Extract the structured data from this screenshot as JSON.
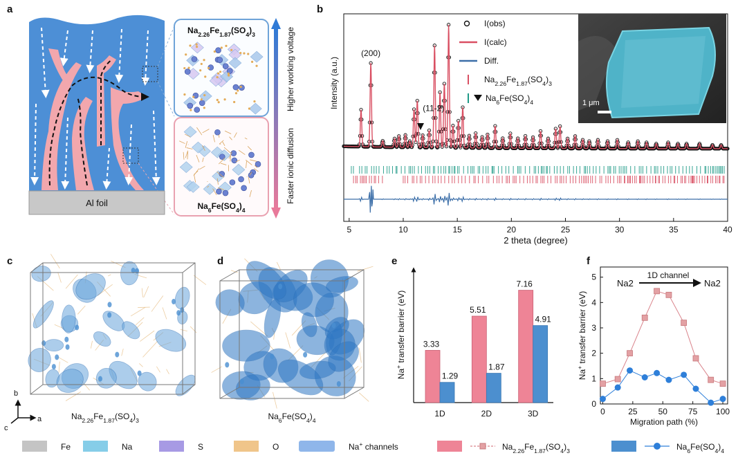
{
  "panel_labels": {
    "a": "a",
    "b": "b",
    "c": "c",
    "d": "d",
    "e": "e",
    "f": "f"
  },
  "panel_a": {
    "foil_label": "Al foil",
    "top_compound": "Na2.26Fe1.87(SO4)3",
    "bottom_compound": "Na6Fe(SO4)4",
    "arrow_up_label": "Higher working voltage",
    "arrow_down_label": "Faster ionic diffusion",
    "colors": {
      "electrode": "#4d8fd6",
      "path": "#f2a7ad",
      "foil": "#c8c8c8"
    }
  },
  "panel_b_inset": {
    "scale_bar": "1 μm"
  },
  "panel_c": {
    "caption": "Na2.26Fe1.87(SO4)3"
  },
  "panel_d": {
    "caption": "Na6Fe(SO4)4"
  },
  "axes_triad": {
    "b": "b",
    "a": "a",
    "c": "c"
  },
  "chart_data": [
    {
      "id": "b",
      "type": "line",
      "title": "",
      "xlabel": "2 theta (degree)",
      "ylabel": "Intensity (a.u.)",
      "xlim": [
        4.5,
        40
      ],
      "xticks": [
        5,
        10,
        15,
        20,
        25,
        30,
        35,
        40
      ],
      "legend": [
        {
          "name": "I(obs)",
          "color": "#111111",
          "style": "circle"
        },
        {
          "name": "I(calc)",
          "color": "#d94f62",
          "style": "line"
        },
        {
          "name": "Diff.",
          "color": "#3b6ea8",
          "style": "line"
        },
        {
          "name": "Na2.26Fe1.87(SO4)3",
          "color": "#d94f62",
          "style": "tick"
        },
        {
          "name": "Na6Fe(SO4)4",
          "color": "#1f9a87",
          "style": "tick",
          "marker": "triangle"
        }
      ],
      "annotations": [
        {
          "text": "(200)",
          "x": 7.0
        },
        {
          "text": "(11-2)",
          "x": 12.8
        }
      ],
      "peaks": [
        {
          "x": 6.1,
          "h": 0.3
        },
        {
          "x": 7.0,
          "h": 0.68
        },
        {
          "x": 8.1,
          "h": 0.05
        },
        {
          "x": 9.2,
          "h": 0.07
        },
        {
          "x": 9.6,
          "h": 0.09
        },
        {
          "x": 10.2,
          "h": 0.1
        },
        {
          "x": 10.6,
          "h": 0.05
        },
        {
          "x": 11.0,
          "h": 0.31
        },
        {
          "x": 11.3,
          "h": 0.38
        },
        {
          "x": 11.8,
          "h": 0.1
        },
        {
          "x": 12.4,
          "h": 0.14
        },
        {
          "x": 12.9,
          "h": 0.83
        },
        {
          "x": 13.4,
          "h": 0.45
        },
        {
          "x": 13.8,
          "h": 0.52
        },
        {
          "x": 14.2,
          "h": 1.0
        },
        {
          "x": 14.6,
          "h": 0.18
        },
        {
          "x": 15.1,
          "h": 0.22
        },
        {
          "x": 15.5,
          "h": 0.33
        },
        {
          "x": 16.1,
          "h": 0.1
        },
        {
          "x": 16.7,
          "h": 0.12
        },
        {
          "x": 17.3,
          "h": 0.09
        },
        {
          "x": 17.8,
          "h": 0.11
        },
        {
          "x": 18.5,
          "h": 0.18
        },
        {
          "x": 19.2,
          "h": 0.08
        },
        {
          "x": 19.9,
          "h": 0.12
        },
        {
          "x": 20.6,
          "h": 0.08
        },
        {
          "x": 21.3,
          "h": 0.1
        },
        {
          "x": 22.0,
          "h": 0.09
        },
        {
          "x": 22.7,
          "h": 0.14
        },
        {
          "x": 23.4,
          "h": 0.08
        },
        {
          "x": 24.1,
          "h": 0.16
        },
        {
          "x": 24.5,
          "h": 0.18
        },
        {
          "x": 25.2,
          "h": 0.08
        },
        {
          "x": 25.9,
          "h": 0.1
        },
        {
          "x": 26.6,
          "h": 0.07
        },
        {
          "x": 27.2,
          "h": 0.06
        },
        {
          "x": 28.0,
          "h": 0.07
        },
        {
          "x": 28.9,
          "h": 0.06
        },
        {
          "x": 29.8,
          "h": 0.07
        },
        {
          "x": 30.8,
          "h": 0.05
        },
        {
          "x": 31.7,
          "h": 0.06
        },
        {
          "x": 32.5,
          "h": 0.05
        },
        {
          "x": 33.4,
          "h": 0.04
        },
        {
          "x": 34.5,
          "h": 0.05
        },
        {
          "x": 35.4,
          "h": 0.04
        },
        {
          "x": 36.2,
          "h": 0.04
        },
        {
          "x": 37.4,
          "h": 0.04
        },
        {
          "x": 38.6,
          "h": 0.03
        },
        {
          "x": 39.4,
          "h": 0.03
        }
      ],
      "triangle_marker_x": 11.6
    },
    {
      "id": "e",
      "type": "bar",
      "title": "",
      "xlabel": "",
      "ylabel": "Na+ transfer barrier (eV)",
      "ylim": [
        0,
        8.2
      ],
      "categories": [
        "1D",
        "2D",
        "3D"
      ],
      "series": [
        {
          "name": "Na2.26Fe1.87(SO4)3",
          "color": "#ee8496",
          "values": [
            3.33,
            5.51,
            7.16
          ]
        },
        {
          "name": "Na6Fe(SO4)4",
          "color": "#4c8fcf",
          "values": [
            1.29,
            1.87,
            4.91
          ]
        }
      ]
    },
    {
      "id": "f",
      "type": "line",
      "title": "",
      "xlabel": "Migration path (%)",
      "ylabel": "Na+ transfer barrier (eV)",
      "xlim": [
        -2,
        104
      ],
      "ylim": [
        0,
        5.4
      ],
      "xticks": [
        0,
        25,
        50,
        75,
        100
      ],
      "yticks": [
        0,
        1,
        2,
        3,
        4,
        5
      ],
      "annotation": {
        "left": "Na2",
        "right": "Na2",
        "arrow": "1D channel"
      },
      "series": [
        {
          "name": "Na2.26Fe1.87(SO4)3",
          "color": "#d9828a",
          "marker": "square",
          "x": [
            0,
            12.5,
            22.5,
            35,
            45,
            55,
            67.5,
            77.5,
            90,
            100
          ],
          "y": [
            0.8,
            0.98,
            2.0,
            3.4,
            4.45,
            4.3,
            3.2,
            1.8,
            0.95,
            0.8
          ]
        },
        {
          "name": "Na6Fe(SO4)4",
          "color": "#2e7fd9",
          "marker": "circle",
          "x": [
            0,
            12.5,
            22.5,
            35,
            45,
            55,
            67.5,
            77.5,
            90,
            100
          ],
          "y": [
            0.2,
            0.65,
            1.32,
            1.05,
            1.22,
            0.95,
            1.15,
            0.6,
            0.05,
            0.2
          ]
        }
      ]
    }
  ],
  "bottom_legend": [
    {
      "label": "Fe",
      "color": "#c4c4c4"
    },
    {
      "label": "Na",
      "color": "#86cde8"
    },
    {
      "label": "S",
      "color": "#a79ae4"
    },
    {
      "label": "O",
      "color": "#f0c58a"
    },
    {
      "label": "Na+ channels",
      "color": "#8fb6ea"
    },
    {
      "label": "Na2.26Fe1.87(SO4)3",
      "color": "#ee8496"
    },
    {
      "label": "Na6Fe(SO4)4",
      "color": "#4c8fcf"
    }
  ]
}
